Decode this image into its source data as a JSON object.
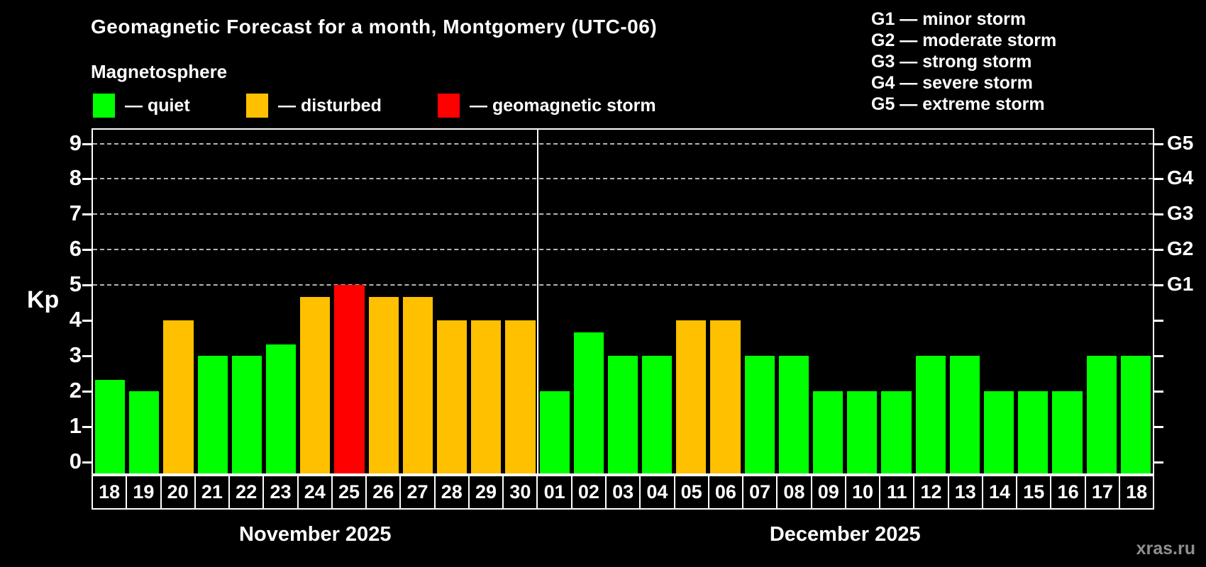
{
  "header": {
    "title": "Geomagnetic Forecast for a month, Montgomery (UTC-06)",
    "subtitle": "Magnetosphere"
  },
  "legend": {
    "quiet": "— quiet",
    "disturbed": "— disturbed",
    "storm": "— geomagnetic storm"
  },
  "storm_scale": [
    {
      "code": "G1",
      "label": "minor storm",
      "kp": 5
    },
    {
      "code": "G2",
      "label": "moderate storm",
      "kp": 6
    },
    {
      "code": "G3",
      "label": "strong storm",
      "kp": 7
    },
    {
      "code": "G4",
      "label": "severe storm",
      "kp": 8
    },
    {
      "code": "G5",
      "label": "extreme storm",
      "kp": 9
    }
  ],
  "colors": {
    "quiet": "#00ff00",
    "disturbed": "#ffc000",
    "storm": "#ff0000",
    "grid": "#b4b4b4",
    "axis": "#ffffff",
    "background": "#000000"
  },
  "watermark": "xras.ru",
  "chart_data": {
    "type": "bar",
    "title": "Geomagnetic Forecast for a month, Montgomery (UTC-06)",
    "ylabel": "Kp",
    "yticks": [
      0,
      1,
      2,
      3,
      4,
      5,
      6,
      7,
      8,
      9
    ],
    "ylim": [
      -0.32,
      9.4
    ],
    "gridlines_at_kp": [
      5,
      6,
      7,
      8,
      9
    ],
    "grid": "dashed horizontal lines at storm levels G1-G5 only",
    "legend_position": "top",
    "months": [
      {
        "label": "November 2025",
        "days": [
          {
            "day": "18",
            "kp": 2.33,
            "status": "quiet"
          },
          {
            "day": "19",
            "kp": 2,
            "status": "quiet"
          },
          {
            "day": "20",
            "kp": 4,
            "status": "disturbed"
          },
          {
            "day": "21",
            "kp": 3,
            "status": "quiet"
          },
          {
            "day": "22",
            "kp": 3,
            "status": "quiet"
          },
          {
            "day": "23",
            "kp": 3.33,
            "status": "quiet"
          },
          {
            "day": "24",
            "kp": 4.67,
            "status": "disturbed"
          },
          {
            "day": "25",
            "kp": 5,
            "status": "storm"
          },
          {
            "day": "26",
            "kp": 4.67,
            "status": "disturbed"
          },
          {
            "day": "27",
            "kp": 4.67,
            "status": "disturbed"
          },
          {
            "day": "28",
            "kp": 4,
            "status": "disturbed"
          },
          {
            "day": "29",
            "kp": 4,
            "status": "disturbed"
          },
          {
            "day": "30",
            "kp": 4,
            "status": "disturbed"
          }
        ]
      },
      {
        "label": "December 2025",
        "days": [
          {
            "day": "01",
            "kp": 2,
            "status": "quiet"
          },
          {
            "day": "02",
            "kp": 3.67,
            "status": "quiet"
          },
          {
            "day": "03",
            "kp": 3,
            "status": "quiet"
          },
          {
            "day": "04",
            "kp": 3,
            "status": "quiet"
          },
          {
            "day": "05",
            "kp": 4,
            "status": "disturbed"
          },
          {
            "day": "06",
            "kp": 4,
            "status": "disturbed"
          },
          {
            "day": "07",
            "kp": 3,
            "status": "quiet"
          },
          {
            "day": "08",
            "kp": 3,
            "status": "quiet"
          },
          {
            "day": "09",
            "kp": 2,
            "status": "quiet"
          },
          {
            "day": "10",
            "kp": 2,
            "status": "quiet"
          },
          {
            "day": "11",
            "kp": 2,
            "status": "quiet"
          },
          {
            "day": "12",
            "kp": 3,
            "status": "quiet"
          },
          {
            "day": "13",
            "kp": 3,
            "status": "quiet"
          },
          {
            "day": "14",
            "kp": 2,
            "status": "quiet"
          },
          {
            "day": "15",
            "kp": 2,
            "status": "quiet"
          },
          {
            "day": "16",
            "kp": 2,
            "status": "quiet"
          },
          {
            "day": "17",
            "kp": 3,
            "status": "quiet"
          },
          {
            "day": "18",
            "kp": 3,
            "status": "quiet"
          }
        ]
      }
    ]
  }
}
